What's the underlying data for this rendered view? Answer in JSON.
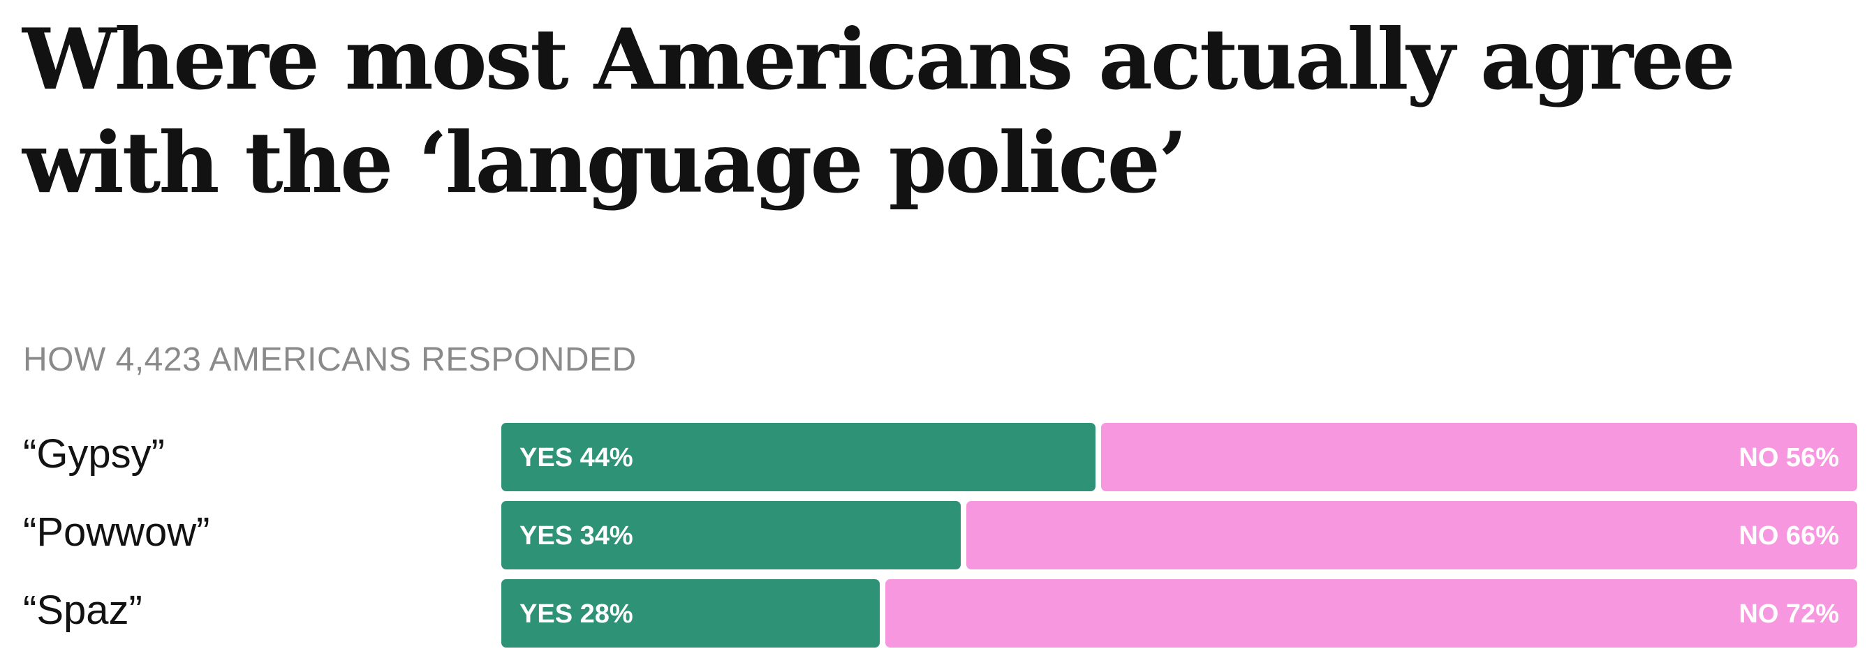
{
  "headline": "Where most Americans actually agree with the ‘language police’",
  "subhead": "HOW 4,423 AMERICANS RESPONDED",
  "chart_data": {
    "type": "bar",
    "orientation": "horizontal-stacked",
    "categories": [
      "“Gypsy”",
      "“Powwow”",
      "“Spaz”"
    ],
    "series": [
      {
        "name": "YES",
        "values": [
          44,
          34,
          28
        ],
        "color": "#2e9277"
      },
      {
        "name": "NO",
        "values": [
          56,
          66,
          72
        ],
        "color": "#f797e0"
      }
    ],
    "unit": "%",
    "xlim": [
      0,
      100
    ],
    "grid": false,
    "legend": "none"
  }
}
